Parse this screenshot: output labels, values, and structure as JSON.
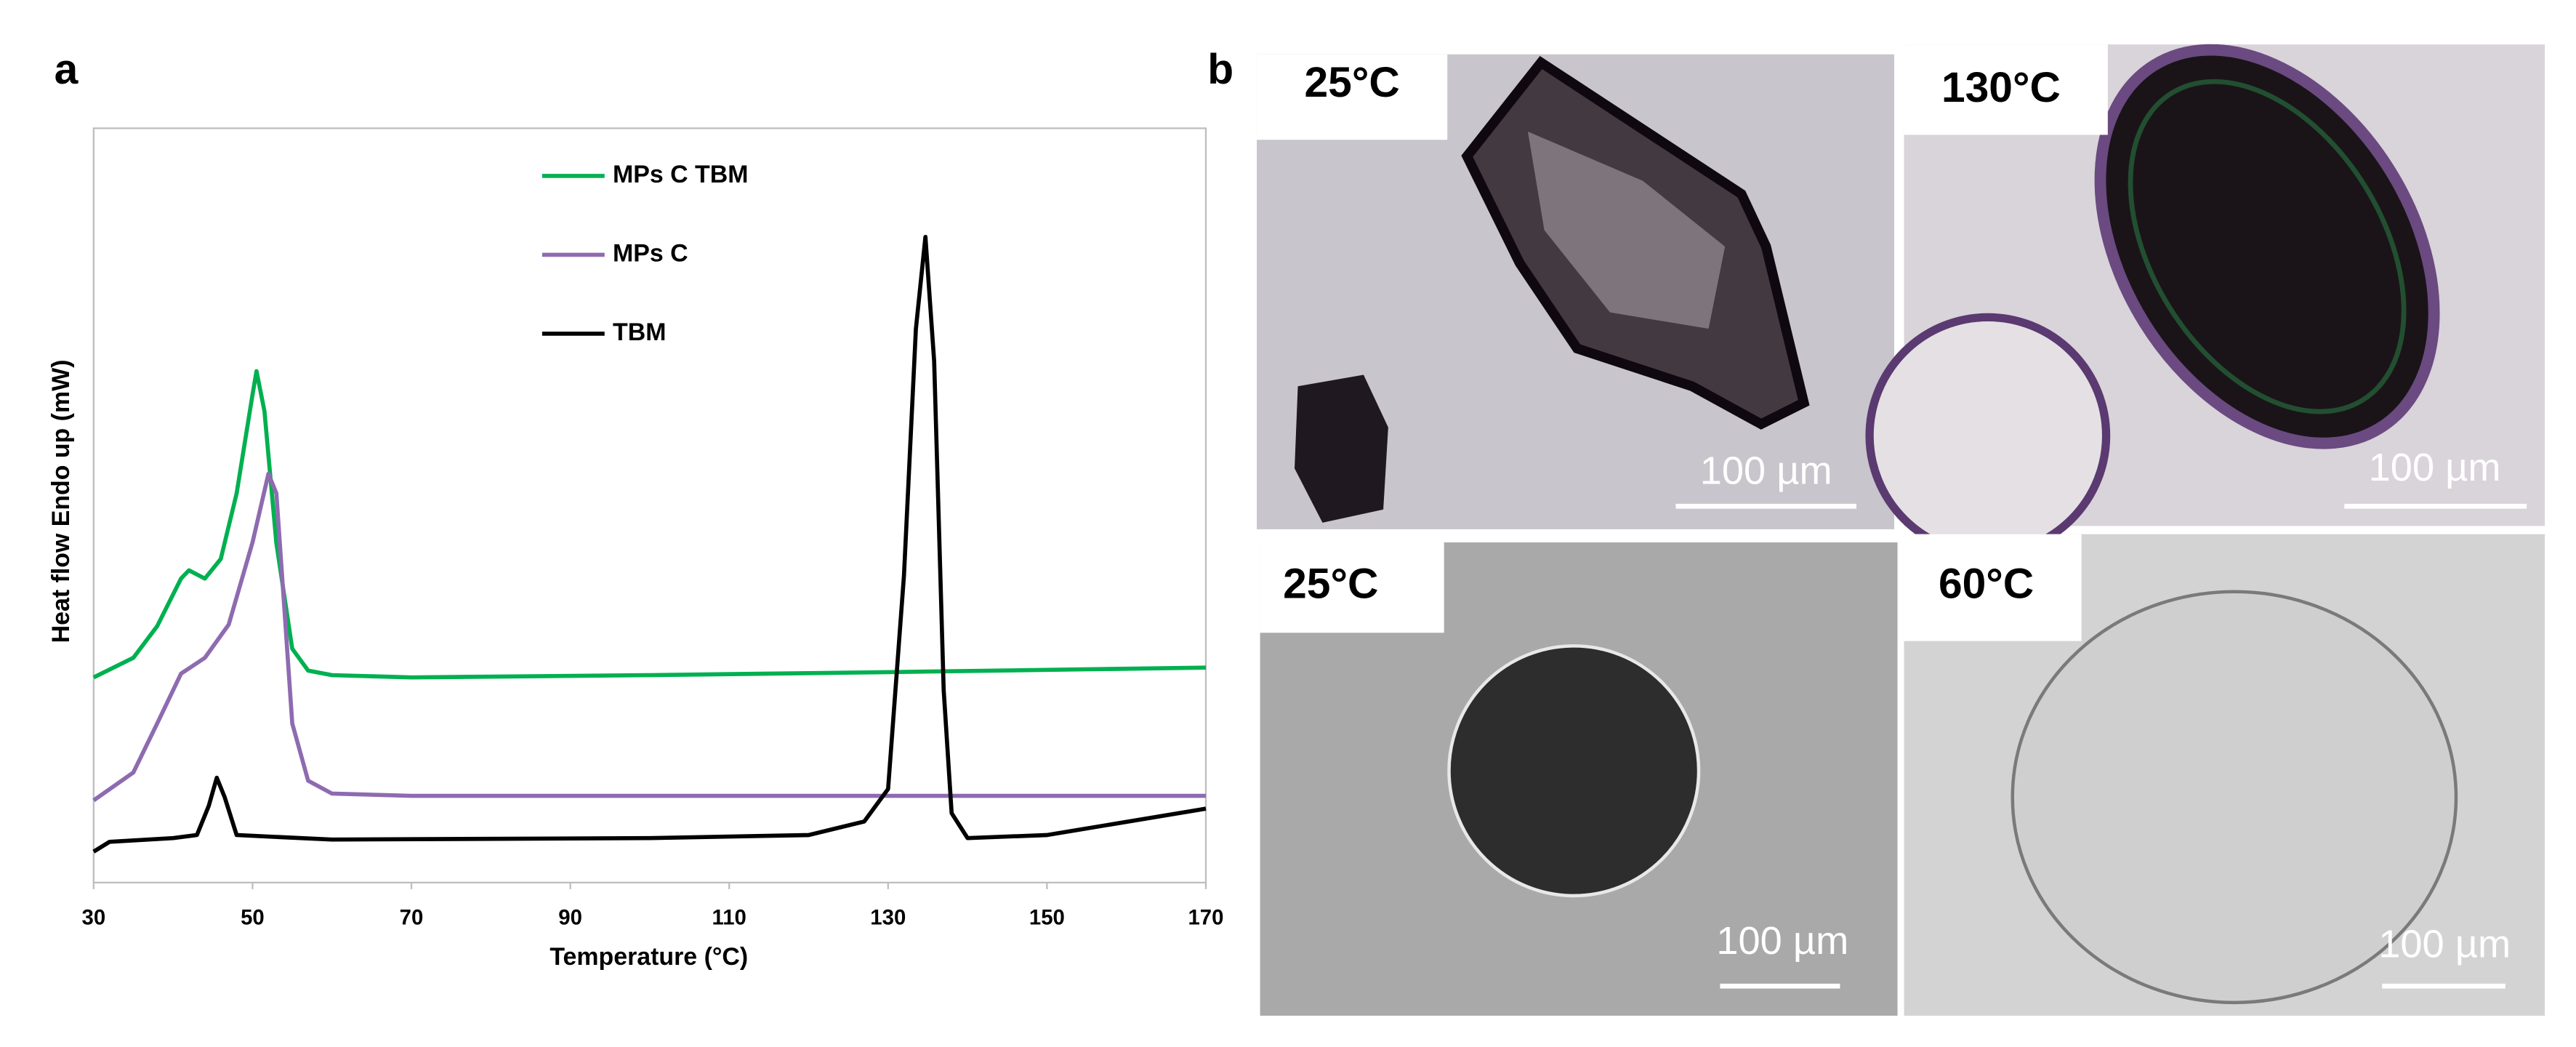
{
  "chart_data": {
    "type": "line",
    "xlabel": "Temperature (°C)",
    "ylabel": "Heat flow Endo up (mW)",
    "xlim": [
      30,
      170
    ],
    "xticks": [
      30,
      50,
      70,
      90,
      110,
      130,
      150,
      170
    ],
    "ylim": [
      0,
      100
    ],
    "series": [
      {
        "name": "MPs C TBM",
        "color": "#00b050",
        "x": [
          30,
          35,
          38,
          41,
          42,
          44,
          46,
          48,
          50,
          50.5,
          51.5,
          53,
          55,
          57,
          60,
          70,
          100,
          130,
          170
        ],
        "values": [
          27.2,
          29.8,
          34,
          40.3,
          41.4,
          40.3,
          42.9,
          51.6,
          64.7,
          67.8,
          62.5,
          45,
          31,
          28.1,
          27.5,
          27.2,
          27.5,
          27.9,
          28.5
        ]
      },
      {
        "name": "MPs C",
        "color": "#8e6bb0",
        "x": [
          30,
          35,
          38,
          41,
          44,
          47,
          50,
          52,
          53,
          54,
          55,
          57,
          60,
          70,
          170
        ],
        "values": [
          10.9,
          14.6,
          21.1,
          27.7,
          29.8,
          34.2,
          45.1,
          54.2,
          51.6,
          36.4,
          21.1,
          13.5,
          11.8,
          11.5,
          11.5
        ]
      },
      {
        "name": "TBM",
        "color": "#000000",
        "x": [
          30,
          32,
          40,
          43,
          44.5,
          45.5,
          46.5,
          48,
          60,
          100,
          120,
          127,
          130,
          132,
          133.5,
          134.7,
          135.8,
          137,
          138,
          140,
          150,
          170
        ],
        "values": [
          4.1,
          5.4,
          5.9,
          6.3,
          10.2,
          13.9,
          11.3,
          6.3,
          5.7,
          5.9,
          6.3,
          8.1,
          12.4,
          40.7,
          73.4,
          85.6,
          69.1,
          25.5,
          9.2,
          5.9,
          6.3,
          9.8
        ]
      }
    ],
    "legend": "upper center",
    "grid": false
  },
  "panels": [
    "a",
    "b"
  ],
  "micrographs": [
    {
      "temperature": "25°C",
      "scale_bar": "100 µm"
    },
    {
      "temperature": "130°C",
      "scale_bar": "100 µm"
    },
    {
      "temperature": "25°C",
      "scale_bar": "100 µm"
    },
    {
      "temperature": "60°C",
      "scale_bar": "100 µm"
    }
  ]
}
